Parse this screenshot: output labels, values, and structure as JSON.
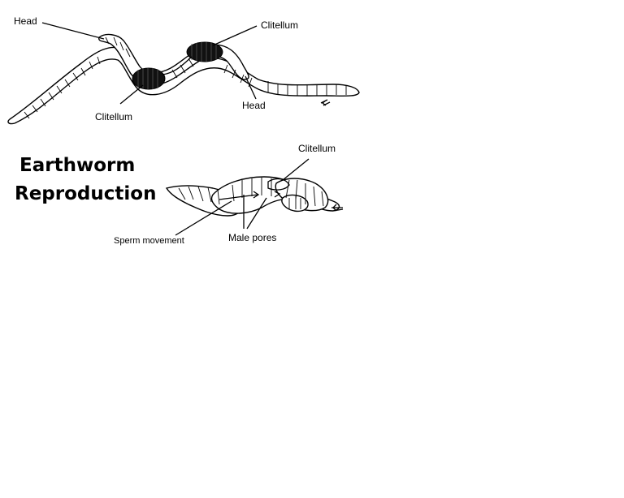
{
  "title_line1": "Earthworm",
  "title_line2": "Reproduction",
  "labels": {
    "head_top_left": "Head",
    "clitellum_top_right": "Clitellum",
    "head_top_middle": "Head",
    "clitellum_top_left": "Clitellum",
    "clitellum_bottom": "Clitellum",
    "sperm_movement": "Sperm movement",
    "male_pores": "Male pores"
  },
  "colors": {
    "ink": "#000000",
    "background": "#ffffff"
  }
}
